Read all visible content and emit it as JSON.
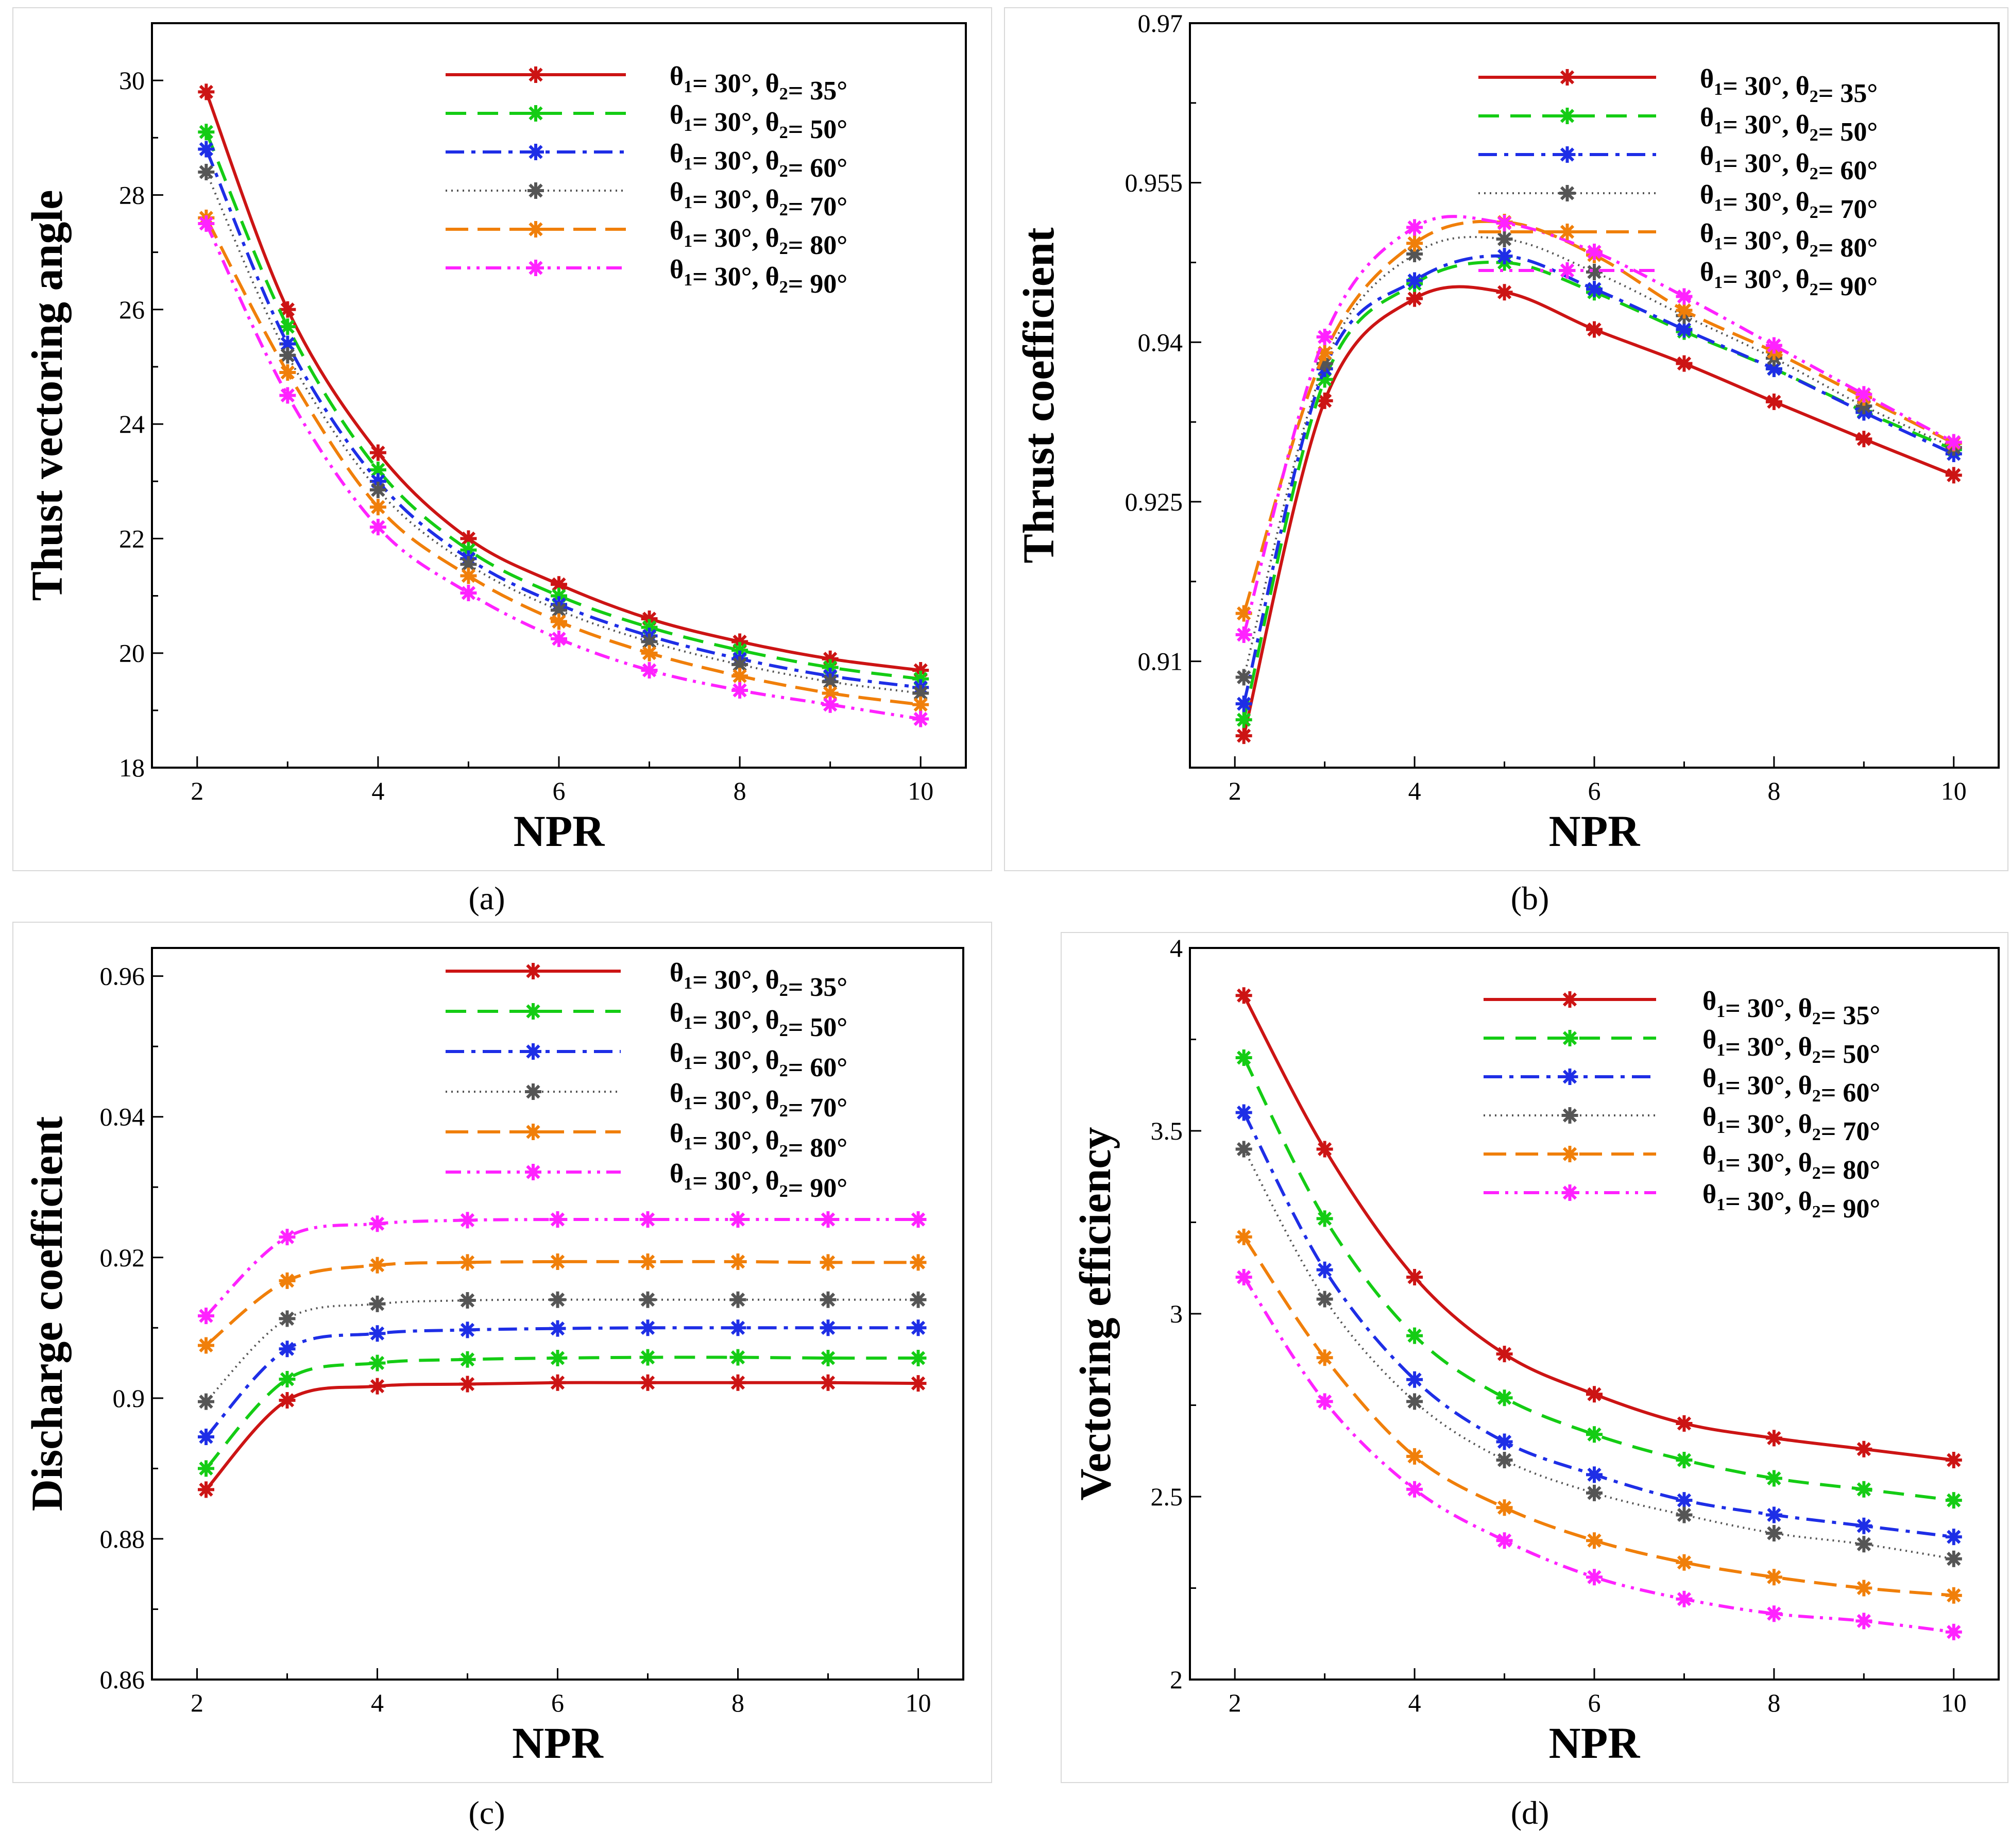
{
  "series_style": [
    {
      "color": "#cc1414",
      "dash": ""
    },
    {
      "color": "#14cc14",
      "dash": "40,22"
    },
    {
      "color": "#1e2ee6",
      "dash": "36,14,8,14"
    },
    {
      "color": "#555555",
      "dash": "3,8"
    },
    {
      "color": "#f07f0a",
      "dash": "44,18"
    },
    {
      "color": "#ff22ff",
      "dash": "30,12,6,12,6,12"
    }
  ],
  "legend_entries": [
    {
      "theta1": "30°",
      "theta2": "35°"
    },
    {
      "theta1": "30°",
      "theta2": "50°"
    },
    {
      "theta1": "30°",
      "theta2": "60°"
    },
    {
      "theta1": "30°",
      "theta2": "70°"
    },
    {
      "theta1": "30°",
      "theta2": "80°"
    },
    {
      "theta1": "30°",
      "theta2": "90°"
    }
  ],
  "legend_symbol": "θ",
  "legend_sub1": "1",
  "legend_sub2": "2",
  "legend_eq": "= ",
  "chart_data": [
    {
      "type": "line",
      "caption": "(a)",
      "xlabel": "NPR",
      "ylabel": "Thust vectoring angle",
      "xlim": [
        1.5,
        10.5
      ],
      "ylim": [
        18,
        31
      ],
      "xticks": [
        2,
        4,
        6,
        8,
        10
      ],
      "yticks": [
        18,
        20,
        22,
        24,
        26,
        28,
        30
      ],
      "legend": "top-right",
      "x": [
        2.1,
        3,
        4,
        5,
        6,
        7,
        8,
        9,
        10
      ],
      "series": [
        {
          "values": [
            29.8,
            26.0,
            23.5,
            22.0,
            21.2,
            20.6,
            20.2,
            19.9,
            19.7
          ]
        },
        {
          "values": [
            29.1,
            25.7,
            23.2,
            21.8,
            21.0,
            20.45,
            20.05,
            19.75,
            19.55
          ]
        },
        {
          "values": [
            28.8,
            25.4,
            23.0,
            21.65,
            20.85,
            20.3,
            19.9,
            19.6,
            19.4
          ]
        },
        {
          "values": [
            28.4,
            25.2,
            22.85,
            21.55,
            20.75,
            20.2,
            19.8,
            19.5,
            19.3
          ]
        },
        {
          "values": [
            27.6,
            24.9,
            22.55,
            21.35,
            20.55,
            20.0,
            19.6,
            19.3,
            19.1
          ]
        },
        {
          "values": [
            27.5,
            24.5,
            22.2,
            21.05,
            20.25,
            19.7,
            19.35,
            19.1,
            18.85
          ]
        }
      ]
    },
    {
      "type": "line",
      "caption": "(b)",
      "xlabel": "NPR",
      "ylabel": "Thrust coefficient",
      "xlim": [
        1.5,
        10.5
      ],
      "ylim": [
        0.9,
        0.97
      ],
      "xticks": [
        2,
        4,
        6,
        8,
        10
      ],
      "yticks": [
        0.91,
        0.925,
        0.94,
        0.955,
        0.97
      ],
      "yticklabels": [
        "0.91",
        "0.925",
        "0.94",
        "0.955",
        "0.97"
      ],
      "legend": "top-right",
      "x": [
        2.1,
        3,
        4,
        5,
        6,
        7,
        8,
        9,
        10
      ],
      "series": [
        {
          "values": [
            0.903,
            0.9345,
            0.9441,
            0.9447,
            0.9412,
            0.938,
            0.9344,
            0.9309,
            0.9275
          ]
        },
        {
          "values": [
            0.9045,
            0.9365,
            0.9455,
            0.9475,
            0.9447,
            0.941,
            0.9375,
            0.9335,
            0.9299
          ]
        },
        {
          "values": [
            0.906,
            0.9375,
            0.9458,
            0.9481,
            0.945,
            0.9412,
            0.9375,
            0.9334,
            0.9295
          ]
        },
        {
          "values": [
            0.9085,
            0.938,
            0.9483,
            0.9497,
            0.9466,
            0.9425,
            0.9385,
            0.934,
            0.9301
          ]
        },
        {
          "values": [
            0.9145,
            0.939,
            0.9493,
            0.9513,
            0.9482,
            0.943,
            0.9391,
            0.9348,
            0.9305
          ]
        },
        {
          "values": [
            0.9125,
            0.9405,
            0.9508,
            0.9512,
            0.9485,
            0.9443,
            0.9397,
            0.9351,
            0.9306
          ]
        }
      ]
    },
    {
      "type": "line",
      "caption": "(c)",
      "xlabel": "NPR",
      "ylabel": "Discharge coefficient",
      "xlim": [
        1.5,
        10.5
      ],
      "ylim": [
        0.86,
        0.964
      ],
      "xticks": [
        2,
        4,
        6,
        8,
        10
      ],
      "yticks": [
        0.86,
        0.88,
        0.9,
        0.92,
        0.94,
        0.96
      ],
      "yticklabels": [
        "0.86",
        "0.88",
        "0.9",
        "0.92",
        "0.94",
        "0.96"
      ],
      "legend": "top-right",
      "x": [
        2.1,
        3,
        4,
        5,
        6,
        7,
        8,
        9,
        10
      ],
      "series": [
        {
          "values": [
            0.887,
            0.8997,
            0.9017,
            0.902,
            0.9022,
            0.9022,
            0.9022,
            0.9022,
            0.9021
          ]
        },
        {
          "values": [
            0.89,
            0.9027,
            0.905,
            0.9055,
            0.9057,
            0.9058,
            0.9058,
            0.9057,
            0.9057
          ]
        },
        {
          "values": [
            0.8945,
            0.907,
            0.9092,
            0.9097,
            0.9099,
            0.91,
            0.91,
            0.91,
            0.91
          ]
        },
        {
          "values": [
            0.8995,
            0.9113,
            0.9134,
            0.9139,
            0.914,
            0.914,
            0.914,
            0.914,
            0.914
          ]
        },
        {
          "values": [
            0.9075,
            0.9167,
            0.9189,
            0.9193,
            0.9194,
            0.9194,
            0.9194,
            0.9193,
            0.9193
          ]
        },
        {
          "values": [
            0.9117,
            0.9229,
            0.9248,
            0.9253,
            0.9254,
            0.9254,
            0.9254,
            0.9254,
            0.9254
          ]
        }
      ]
    },
    {
      "type": "line",
      "caption": "(d)",
      "xlabel": "NPR",
      "ylabel": "Vectoring efficiency",
      "xlim": [
        1.5,
        10.5
      ],
      "ylim": [
        2,
        4
      ],
      "xticks": [
        2,
        4,
        6,
        8,
        10
      ],
      "yticks": [
        2,
        2.5,
        3,
        3.5,
        4
      ],
      "yticklabels": [
        "2",
        "2.5",
        "3",
        "3.5",
        "4"
      ],
      "legend": "top-right",
      "x": [
        2.1,
        3,
        4,
        5,
        6,
        7,
        8,
        9,
        10
      ],
      "series": [
        {
          "values": [
            3.87,
            3.45,
            3.1,
            2.89,
            2.78,
            2.7,
            2.66,
            2.63,
            2.6
          ]
        },
        {
          "values": [
            3.7,
            3.26,
            2.94,
            2.77,
            2.67,
            2.6,
            2.55,
            2.52,
            2.49
          ]
        },
        {
          "values": [
            3.55,
            3.12,
            2.82,
            2.65,
            2.56,
            2.49,
            2.45,
            2.42,
            2.39
          ]
        },
        {
          "values": [
            3.45,
            3.04,
            2.76,
            2.6,
            2.51,
            2.45,
            2.4,
            2.37,
            2.33
          ]
        },
        {
          "values": [
            3.21,
            2.88,
            2.61,
            2.47,
            2.38,
            2.32,
            2.28,
            2.25,
            2.23
          ]
        },
        {
          "values": [
            3.1,
            2.76,
            2.52,
            2.38,
            2.28,
            2.22,
            2.18,
            2.16,
            2.13
          ]
        }
      ]
    }
  ]
}
